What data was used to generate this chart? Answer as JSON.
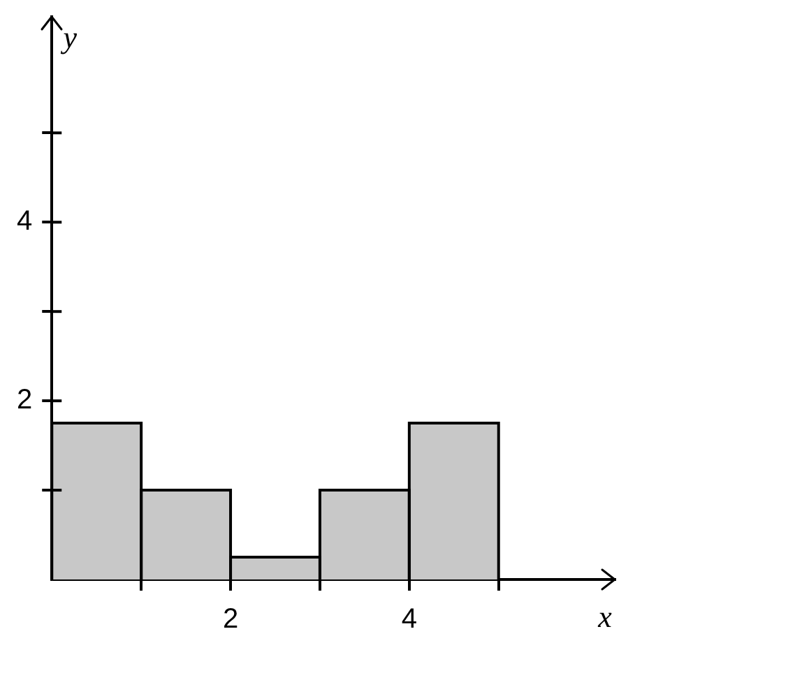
{
  "chart_data": {
    "type": "histogram",
    "xlabel": "x",
    "ylabel": "y",
    "bins": [
      0,
      1,
      2,
      3,
      4,
      5
    ],
    "values": [
      1.75,
      1,
      0.25,
      1,
      1.75
    ],
    "color": "#c8c8c8",
    "xlim": [
      0,
      6.3
    ],
    "ylim": [
      0,
      6.3
    ],
    "xticks": [
      {
        "value": 1,
        "label": null
      },
      2,
      {
        "value": 3,
        "label": null
      },
      4,
      {
        "value": 5,
        "label": null
      }
    ],
    "yticks": [
      {
        "value": 1,
        "label": null
      },
      2,
      {
        "value": 3,
        "label": null
      },
      4,
      {
        "value": 5,
        "label": null
      }
    ],
    "grid": false,
    "legend": false
  }
}
